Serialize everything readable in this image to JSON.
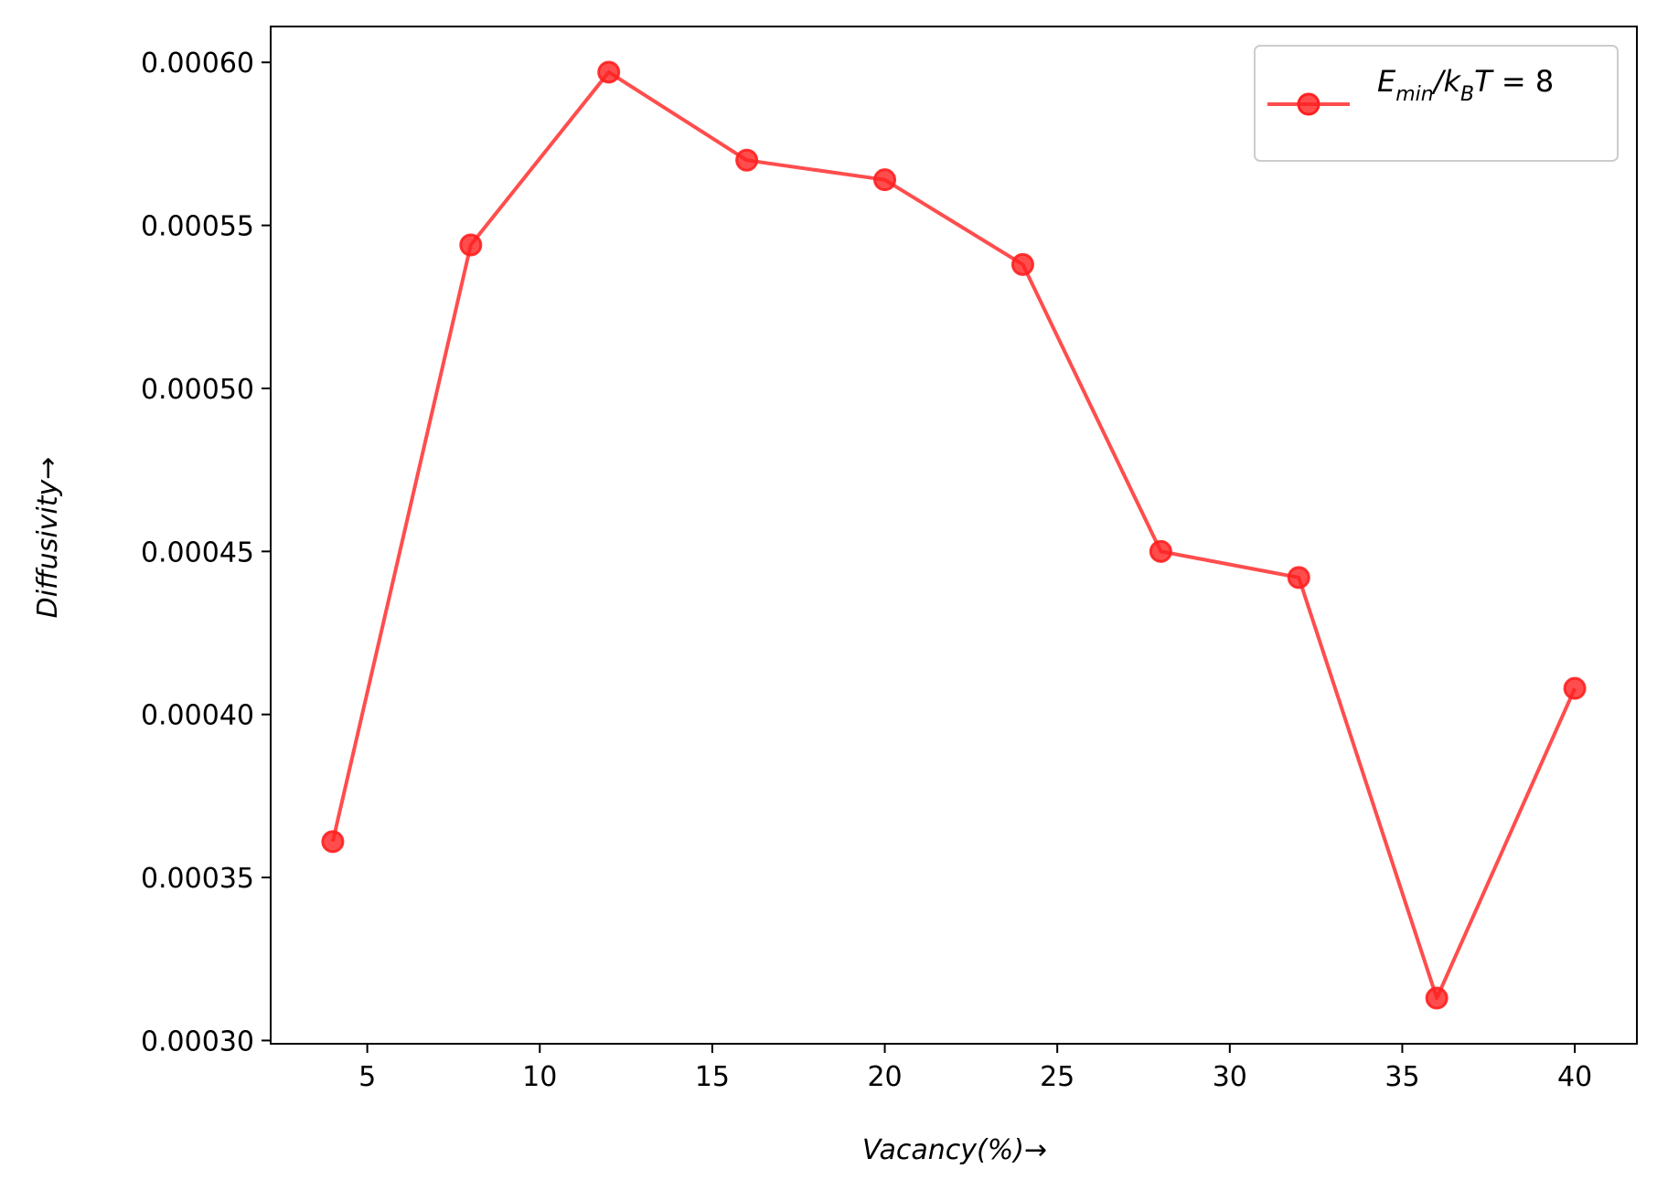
{
  "chart_data": {
    "type": "line",
    "title": "",
    "xlabel": "Vacancy(%)→",
    "ylabel": "Diffusivity→",
    "xlim": [
      2.2,
      41.8
    ],
    "ylim": [
      0.000299,
      0.000611
    ],
    "xticks": [
      5,
      10,
      15,
      20,
      25,
      30,
      35,
      40
    ],
    "xtick_labels": [
      "5",
      "10",
      "15",
      "20",
      "25",
      "30",
      "35",
      "40"
    ],
    "yticks": [
      0.0003,
      0.00035,
      0.0004,
      0.00045,
      0.0005,
      0.00055,
      0.0006
    ],
    "ytick_labels": [
      "0.00030",
      "0.00035",
      "0.00040",
      "0.00045",
      "0.00050",
      "0.00055",
      "0.00060"
    ],
    "grid": false,
    "legend_position": "top-right",
    "series": [
      {
        "name": "E_min/k_BT = 8",
        "color": "#ff2020",
        "marker": "circle",
        "x": [
          4,
          8,
          12,
          16,
          20,
          24,
          28,
          32,
          36,
          40
        ],
        "y": [
          0.000361,
          0.000544,
          0.000597,
          0.00057,
          0.000564,
          0.000538,
          0.00045,
          0.000442,
          0.000313,
          0.000408
        ]
      }
    ],
    "legend": {
      "label_main_1": "E",
      "label_sub_1": "min",
      "label_main_2": "/k",
      "label_sub_2": "B",
      "label_main_3": "T",
      "label_eq": " = 8"
    }
  }
}
